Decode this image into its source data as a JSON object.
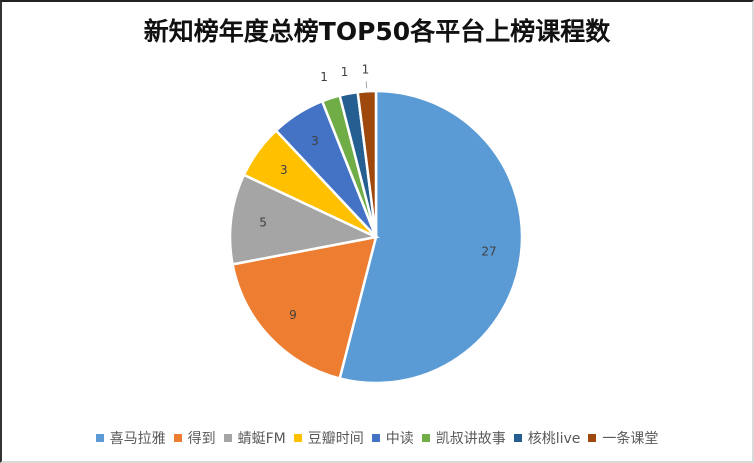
{
  "chart_data": {
    "type": "pie",
    "title": "新知榜年度总榜TOP50各平台上榜课程数",
    "categories": [
      "喜马拉雅",
      "得到",
      "蜻蜓FM",
      "豆瓣时间",
      "中读",
      "凯叔讲故事",
      "核桃live",
      "一条课堂"
    ],
    "values": [
      27,
      9,
      5,
      3,
      3,
      1,
      1,
      1
    ],
    "colors": [
      "#5B9BD5",
      "#ED7D31",
      "#A5A5A5",
      "#FFC000",
      "#4472C4",
      "#70AD47",
      "#255E91",
      "#9E480E"
    ],
    "data_labels": [
      "27",
      "9",
      "5",
      "3",
      "3",
      "1",
      "1",
      "1"
    ],
    "legend_position": "bottom",
    "start_angle": "12 o'clock, clockwise"
  },
  "legend": {
    "items": [
      {
        "label": "喜马拉雅",
        "color": "#5B9BD5"
      },
      {
        "label": "得到",
        "color": "#ED7D31"
      },
      {
        "label": "蜻蜓FM",
        "color": "#A5A5A5"
      },
      {
        "label": "豆瓣时间",
        "color": "#FFC000"
      },
      {
        "label": "中读",
        "color": "#4472C4"
      },
      {
        "label": "凯叔讲故事",
        "color": "#70AD47"
      },
      {
        "label": "核桃live",
        "color": "#255E91"
      },
      {
        "label": "一条课堂",
        "color": "#9E480E"
      }
    ]
  }
}
